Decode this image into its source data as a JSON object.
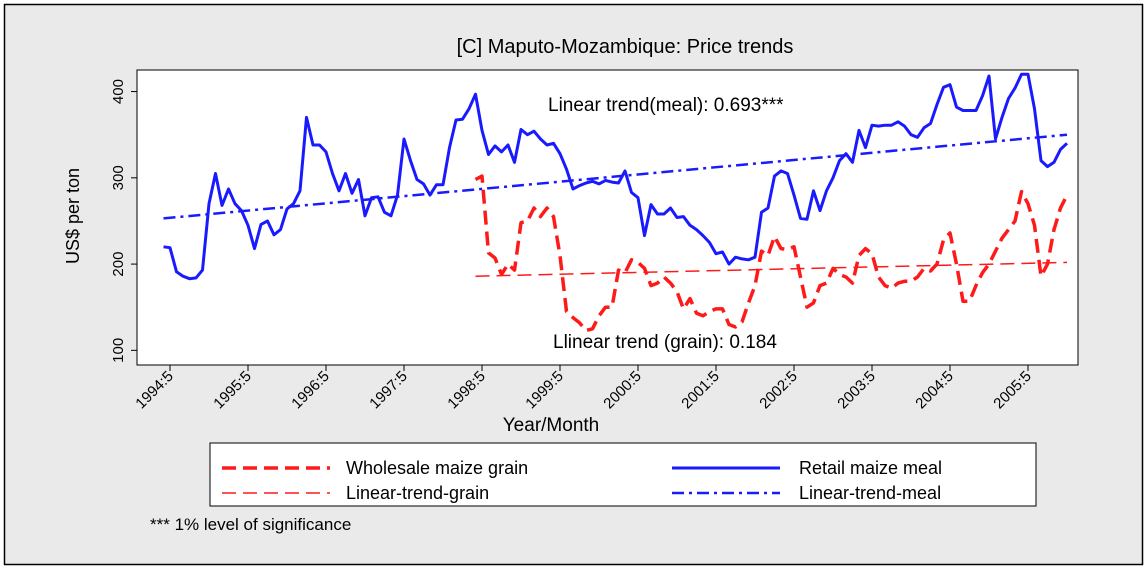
{
  "chart_data": {
    "type": "line",
    "title": "[C] Maputo-Mozambique: Price trends",
    "x_label": "Year/Month",
    "y_label": "US$ per ton",
    "annotations": [
      {
        "text": "Linear trend(meal): 0.693***"
      },
      {
        "text": "Llinear trend (grain): 0.184"
      }
    ],
    "note": "*** 1%  level of significance",
    "x": [
      "1994:4",
      "1994:5",
      "1994:6",
      "1994:7",
      "1994:8",
      "1994:9",
      "1994:10",
      "1994:11",
      "1994:12",
      "1995:1",
      "1995:2",
      "1995:3",
      "1995:4",
      "1995:5",
      "1995:6",
      "1995:7",
      "1995:8",
      "1995:9",
      "1995:10",
      "1995:11",
      "1995:12",
      "1996:1",
      "1996:2",
      "1996:3",
      "1996:4",
      "1996:5",
      "1996:6",
      "1996:7",
      "1996:8",
      "1996:9",
      "1996:10",
      "1996:11",
      "1996:12",
      "1997:1",
      "1997:2",
      "1997:3",
      "1997:4",
      "1997:5",
      "1997:6",
      "1997:7",
      "1997:8",
      "1997:9",
      "1997:10",
      "1997:11",
      "1997:12",
      "1998:1",
      "1998:2",
      "1998:3",
      "1998:4",
      "1998:5",
      "1998:6",
      "1998:7",
      "1998:8",
      "1998:9",
      "1998:10",
      "1998:11",
      "1998:12",
      "1999:1",
      "1999:2",
      "1999:3",
      "1999:4",
      "1999:5",
      "1999:6",
      "1999:7",
      "1999:8",
      "1999:9",
      "1999:10",
      "1999:11",
      "1999:12",
      "2000:1",
      "2000:2",
      "2000:3",
      "2000:4",
      "2000:5",
      "2000:6",
      "2000:7",
      "2000:8",
      "2000:9",
      "2000:10",
      "2000:11",
      "2000:12",
      "2001:1",
      "2001:2",
      "2001:3",
      "2001:4",
      "2001:5",
      "2001:6",
      "2001:7",
      "2001:8",
      "2001:9",
      "2001:10",
      "2001:11",
      "2001:12",
      "2002:1",
      "2002:2",
      "2002:3",
      "2002:4",
      "2002:5",
      "2002:6",
      "2002:7",
      "2002:8",
      "2002:9",
      "2002:10",
      "2002:11",
      "2002:12",
      "2003:1",
      "2003:2",
      "2003:3",
      "2003:4",
      "2003:5",
      "2003:6",
      "2003:7",
      "2003:8",
      "2003:9",
      "2003:10",
      "2003:11",
      "2003:12",
      "2004:1",
      "2004:2",
      "2004:3",
      "2004:4",
      "2004:5",
      "2004:6",
      "2004:7",
      "2004:8",
      "2004:9",
      "2004:10",
      "2004:11",
      "2004:12",
      "2005:1",
      "2005:2",
      "2005:3",
      "2005:4",
      "2005:5",
      "2005:6",
      "2005:7",
      "2005:8",
      "2005:9",
      "2005:10",
      "2005:11"
    ],
    "xticks": [
      "1994:5",
      "1995:5",
      "1996:5",
      "1997:5",
      "1998:5",
      "1999:5",
      "2000:5",
      "2001:5",
      "2002:5",
      "2003:5",
      "2004:5",
      "2005:5"
    ],
    "ylim": [
      83,
      425
    ],
    "yticks": [
      100,
      200,
      300,
      400
    ],
    "series": [
      {
        "name": "Wholesale maize grain",
        "color": "#ff1a1a",
        "style": "dashed",
        "values": [
          null,
          null,
          null,
          null,
          null,
          null,
          null,
          null,
          null,
          null,
          null,
          null,
          null,
          null,
          null,
          null,
          null,
          null,
          null,
          null,
          null,
          null,
          null,
          null,
          null,
          null,
          null,
          null,
          null,
          null,
          null,
          null,
          null,
          null,
          null,
          null,
          null,
          null,
          null,
          null,
          null,
          null,
          null,
          null,
          null,
          null,
          null,
          null,
          298,
          302,
          213,
          207,
          188,
          200,
          193,
          248,
          250,
          265,
          255,
          265,
          255,
          210,
          145,
          138,
          132,
          123,
          125,
          140,
          150,
          150,
          193,
          190,
          205,
          202,
          195,
          175,
          178,
          185,
          178,
          168,
          148,
          160,
          143,
          140,
          145,
          148,
          148,
          130,
          127,
          133,
          155,
          175,
          215,
          210,
          232,
          218,
          217,
          220,
          185,
          150,
          155,
          175,
          178,
          195,
          188,
          185,
          178,
          210,
          218,
          212,
          185,
          175,
          172,
          178,
          180,
          180,
          185,
          195,
          192,
          200,
          228,
          236,
          200,
          157,
          157,
          175,
          190,
          200,
          215,
          230,
          240,
          250,
          284,
          270,
          245,
          186,
          200,
          240,
          265,
          280
        ]
      },
      {
        "name": "Retail maize meal",
        "color": "#1a1aff",
        "style": "solid",
        "values": [
          220,
          219,
          191,
          186,
          183,
          184,
          193,
          270,
          305,
          268,
          287,
          270,
          262,
          245,
          218,
          246,
          250,
          234,
          240,
          264,
          270,
          285,
          370,
          338,
          338,
          330,
          305,
          285,
          305,
          282,
          298,
          256,
          277,
          278,
          260,
          256,
          280,
          345,
          320,
          298,
          293,
          280,
          292,
          292,
          335,
          367,
          368,
          380,
          397,
          355,
          327,
          337,
          330,
          338,
          318,
          356,
          350,
          354,
          345,
          338,
          340,
          328,
          310,
          287,
          291,
          294,
          296,
          293,
          297,
          295,
          294,
          308,
          283,
          277,
          233,
          269,
          258,
          258,
          265,
          254,
          255,
          245,
          240,
          233,
          225,
          212,
          214,
          200,
          208,
          206,
          205,
          208,
          260,
          265,
          302,
          308,
          305,
          280,
          253,
          252,
          285,
          262,
          285,
          300,
          320,
          328,
          318,
          355,
          335,
          361,
          360,
          361,
          361,
          365,
          360,
          350,
          347,
          358,
          363,
          385,
          405,
          408,
          382,
          378,
          378,
          378,
          395,
          418,
          345,
          370,
          392,
          404,
          420,
          420,
          380,
          320,
          313,
          318,
          333,
          340
        ]
      },
      {
        "name": "Linear-trend-grain",
        "color": "#ff1a1a",
        "style": "thin-dashed",
        "x": [
          "1998:4",
          "2005:11"
        ],
        "values": [
          186,
          202
        ]
      },
      {
        "name": "Linear-trend-meal",
        "color": "#1a1aff",
        "style": "dash-dot",
        "x": [
          "1994:4",
          "2005:11"
        ],
        "values": [
          253,
          350
        ]
      }
    ]
  }
}
